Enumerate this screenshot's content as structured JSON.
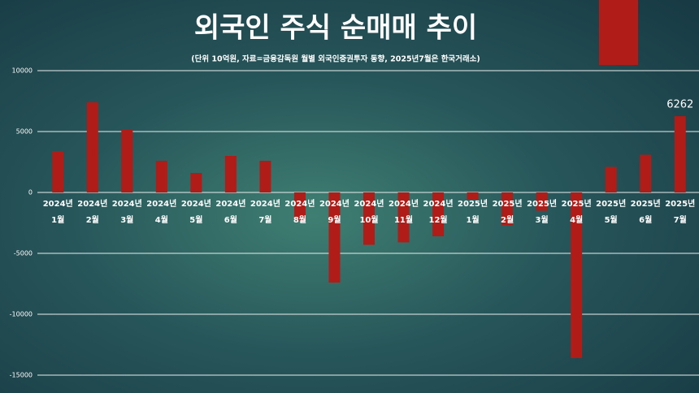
{
  "chart_data": {
    "type": "bar",
    "title": "외국인 주식 순매매 추이",
    "subtitle": "(단위 10억원, 자료=금융감독원 월별 외국인증권투자 동향, 2025년7월은 한국거래소)",
    "categories": [
      "2024년\n1월",
      "2024년\n2월",
      "2024년\n3월",
      "2024년\n4월",
      "2024년\n5월",
      "2024년\n6월",
      "2024년\n7월",
      "2024년\n8월",
      "2024년\n9월",
      "2024년\n10월",
      "2024년\n11월",
      "2024년\n12월",
      "2025년\n1월",
      "2025년\n2월",
      "2025년\n3월",
      "2025년\n4월",
      "2025년\n5월",
      "2025년\n6월",
      "2025년\n7월"
    ],
    "values": [
      3400,
      7400,
      5200,
      2600,
      1600,
      3000,
      2600,
      -2300,
      -7400,
      -4300,
      -4100,
      -3600,
      -600,
      -2700,
      -1500,
      -13600,
      2100,
      3100,
      6262
    ],
    "value_labels": [
      null,
      null,
      null,
      null,
      null,
      null,
      null,
      null,
      null,
      null,
      null,
      null,
      null,
      null,
      null,
      null,
      null,
      null,
      "6262"
    ],
    "color": "#b01c17",
    "ylim": [
      -15000,
      10000
    ],
    "yticks": [
      10000,
      5000,
      0,
      -5000,
      -10000,
      -15000
    ],
    "grid": true
  }
}
